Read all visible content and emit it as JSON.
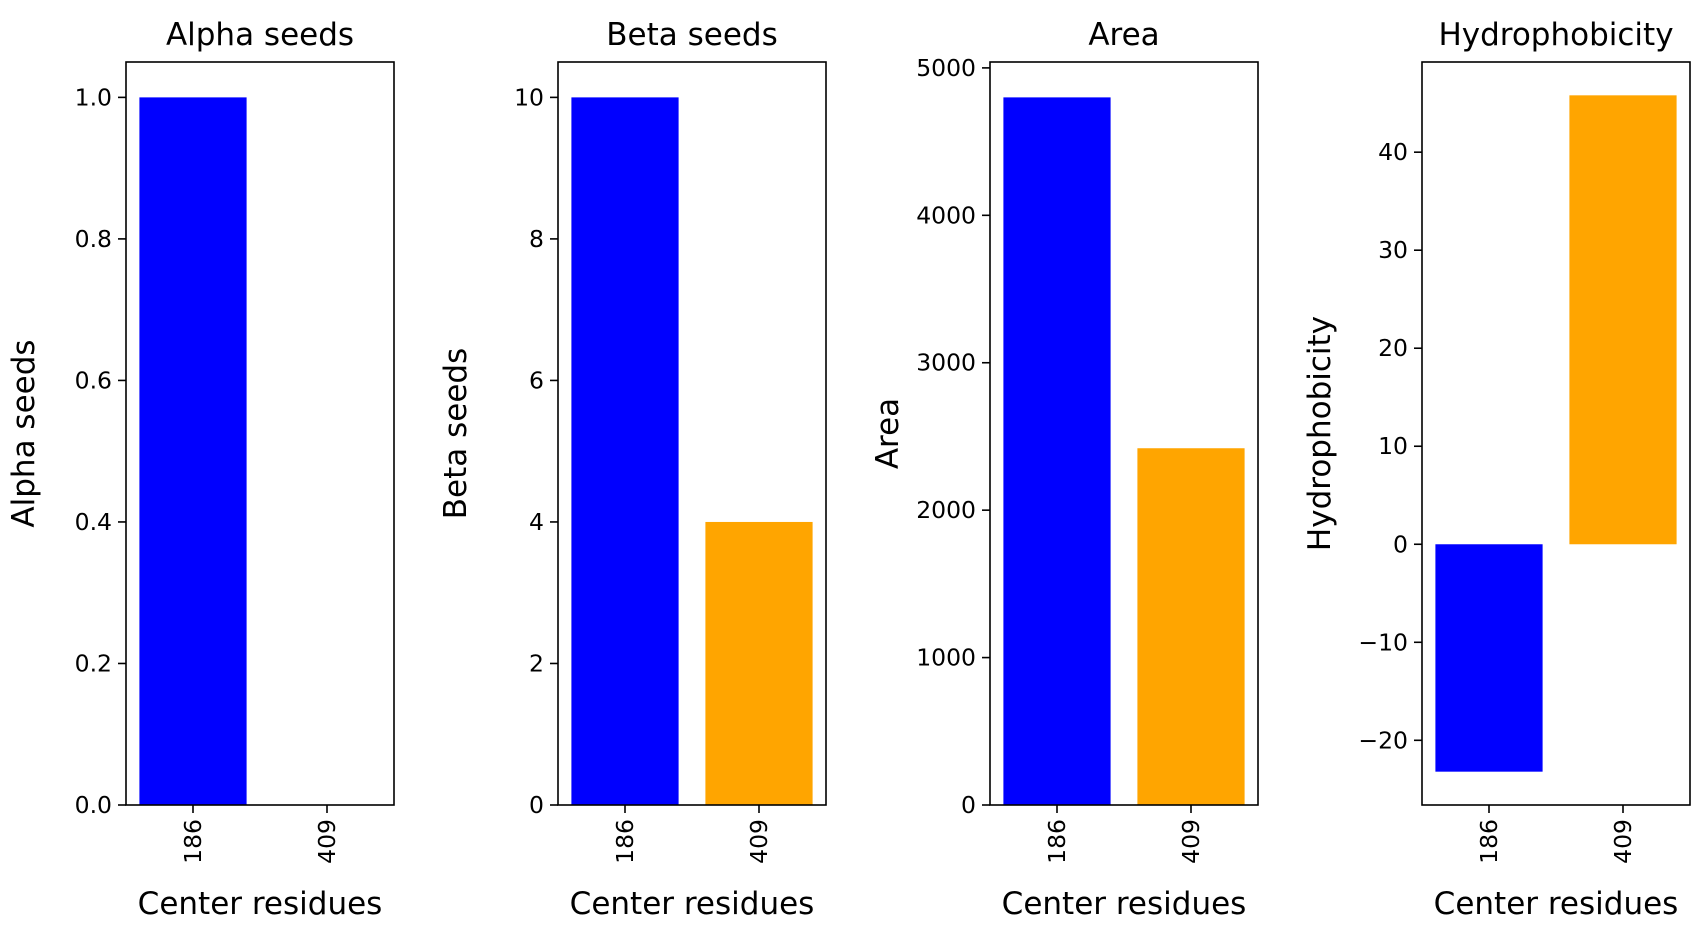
{
  "chart_data": [
    {
      "type": "bar",
      "title": "Alpha seeds",
      "xlabel": "Center residues",
      "ylabel": "Alpha seeds",
      "categories": [
        "186",
        "409"
      ],
      "values": [
        1,
        0
      ],
      "colors": [
        "#0000ff",
        "#ffa500"
      ],
      "ylim": [
        0,
        1.05
      ],
      "yticks": [
        0.0,
        0.2,
        0.4,
        0.6,
        0.8,
        1.0
      ],
      "ytick_labels": [
        "0.0",
        "0.2",
        "0.4",
        "0.6",
        "0.8",
        "1.0"
      ],
      "grid": false,
      "xtick_rotation": 90
    },
    {
      "type": "bar",
      "title": "Beta seeds",
      "xlabel": "Center residues",
      "ylabel": "Beta seeds",
      "categories": [
        "186",
        "409"
      ],
      "values": [
        10,
        4
      ],
      "colors": [
        "#0000ff",
        "#ffa500"
      ],
      "ylim": [
        0,
        10.5
      ],
      "yticks": [
        0,
        2,
        4,
        6,
        8,
        10
      ],
      "ytick_labels": [
        "0",
        "2",
        "4",
        "6",
        "8",
        "10"
      ],
      "grid": false,
      "xtick_rotation": 90
    },
    {
      "type": "bar",
      "title": "Area",
      "xlabel": "Center residues",
      "ylabel": "Area",
      "categories": [
        "186",
        "409"
      ],
      "values": [
        4800,
        2420
      ],
      "colors": [
        "#0000ff",
        "#ffa500"
      ],
      "ylim": [
        0,
        5040
      ],
      "yticks": [
        0,
        1000,
        2000,
        3000,
        4000,
        5000
      ],
      "ytick_labels": [
        "0",
        "1000",
        "2000",
        "3000",
        "4000",
        "5000"
      ],
      "grid": false,
      "xtick_rotation": 90
    },
    {
      "type": "bar",
      "title": "Hydrophobicity",
      "xlabel": "Center residues",
      "ylabel": "Hydrophobicity",
      "categories": [
        "186",
        "409"
      ],
      "values": [
        -23.2,
        45.8
      ],
      "colors": [
        "#0000ff",
        "#ffa500"
      ],
      "ylim": [
        -26.6,
        49.2
      ],
      "yticks": [
        -20,
        -10,
        0,
        10,
        20,
        30,
        40
      ],
      "ytick_labels": [
        "−20",
        "−10",
        "0",
        "10",
        "20",
        "30",
        "40"
      ],
      "grid": false,
      "xtick_rotation": 90
    }
  ]
}
